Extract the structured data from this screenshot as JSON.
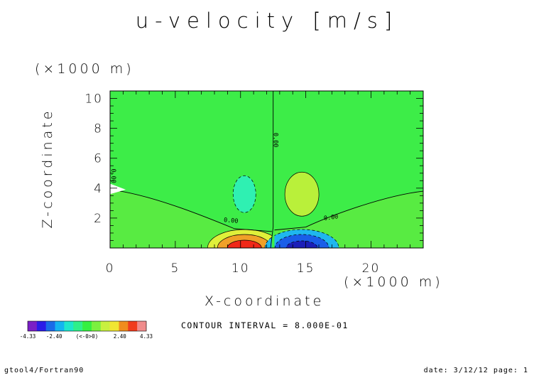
{
  "header": {
    "title": "u-velocity [m/s]"
  },
  "axes": {
    "x_unit": "(×1000 m)",
    "y_unit": "(×1000 m)",
    "xlabel": "X-coordinate",
    "ylabel": "Z-coordinate"
  },
  "footer": {
    "contour_interval": "CONTOUR INTERVAL = 8.000E-01",
    "left": "gtool4/Fortran90",
    "right": "date: 3/12/12 page: 1"
  },
  "colorbar": {
    "tick_labels": [
      "-4.33",
      "-2.40",
      "(<-0>0)",
      "2.40",
      "4.33"
    ],
    "tick_positions": [
      -4.33,
      -2.4,
      0,
      2.4,
      4.33
    ],
    "colors": [
      "#7a1fc6",
      "#2b1be8",
      "#1a6be8",
      "#14b4f0",
      "#1ee6cc",
      "#2ff08a",
      "#35f040",
      "#7bf040",
      "#c8f040",
      "#f0e632",
      "#f08c1e",
      "#f03c1e",
      "#f08c8c"
    ]
  },
  "chart_data": {
    "type": "contour",
    "title": "u-velocity [m/s]",
    "xlabel": "X-coordinate",
    "ylabel": "Z-coordinate",
    "xlim": [
      0,
      24
    ],
    "ylim": [
      0,
      10.5
    ],
    "x_ticks": [
      0,
      5,
      10,
      15,
      20
    ],
    "y_ticks": [
      2,
      4,
      6,
      8,
      10
    ],
    "value_range": [
      -4.33,
      4.33
    ],
    "contour_interval": 0.8,
    "background_value": 0.0,
    "zero_contour_labels": [
      "0.00",
      "0.00",
      "0.00",
      "0.00"
    ],
    "features": [
      {
        "name": "positive core",
        "x": 10.3,
        "z": 0.1,
        "value": 4.33
      },
      {
        "name": "negative core",
        "x": 14.7,
        "z": 0.1,
        "value": -4.33
      },
      {
        "name": "negative upper cell",
        "x": 10.3,
        "z": 3.6,
        "value": -0.8
      },
      {
        "name": "positive upper cell",
        "x": 14.7,
        "z": 3.6,
        "value": 0.8
      }
    ]
  }
}
